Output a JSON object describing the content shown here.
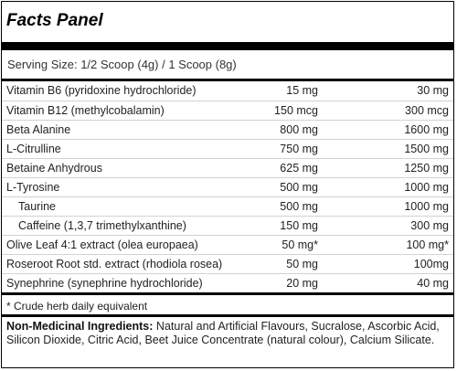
{
  "panel": {
    "title": "Facts Panel",
    "serving_size": "Serving Size: 1/2 Scoop (4g) / 1 Scoop (8g)",
    "rows": [
      {
        "name": "Vitamin B6 (pyridoxine hydrochloride)",
        "v1": "15 mg",
        "v2": "30 mg",
        "indent": false
      },
      {
        "name": "Vitamin B12 (methylcobalamin)",
        "v1": "150 mcg",
        "v2": "300 mcg",
        "indent": false
      },
      {
        "name": "Beta Alanine",
        "v1": "800 mg",
        "v2": "1600 mg",
        "indent": false
      },
      {
        "name": "L-Citrulline",
        "v1": "750 mg",
        "v2": "1500 mg",
        "indent": false
      },
      {
        "name": "Betaine Anhydrous",
        "v1": "625 mg",
        "v2": "1250 mg",
        "indent": false
      },
      {
        "name": "L-Tyrosine",
        "v1": "500 mg",
        "v2": "1000 mg",
        "indent": false
      },
      {
        "name": "Taurine",
        "v1": "500 mg",
        "v2": "1000 mg",
        "indent": true
      },
      {
        "name": "Caffeine (1,3,7 trimethylxanthine)",
        "v1": "150 mg",
        "v2": "300 mg",
        "indent": true
      },
      {
        "name": "Olive Leaf 4:1 extract (olea europaea)",
        "v1": "50 mg*",
        "v2": "100 mg*",
        "indent": false
      },
      {
        "name": "Roseroot Root std. extract (rhodiola rosea)",
        "v1": "50 mg",
        "v2": "100mg",
        "indent": false
      },
      {
        "name": "Synephrine (synephrine hydrochloride)",
        "v1": "20 mg",
        "v2": "40 mg",
        "indent": false
      }
    ],
    "footnote": "* Crude herb daily equivalent",
    "ingredients_label": "Non-Medicinal Ingredients:",
    "ingredients_text": " Natural and Artificial Flavours, Sucralose, Ascorbic Acid, Silicon Dioxide, Citric Acid, Beet Juice Concentrate (natural colour), Calcium Silicate."
  }
}
